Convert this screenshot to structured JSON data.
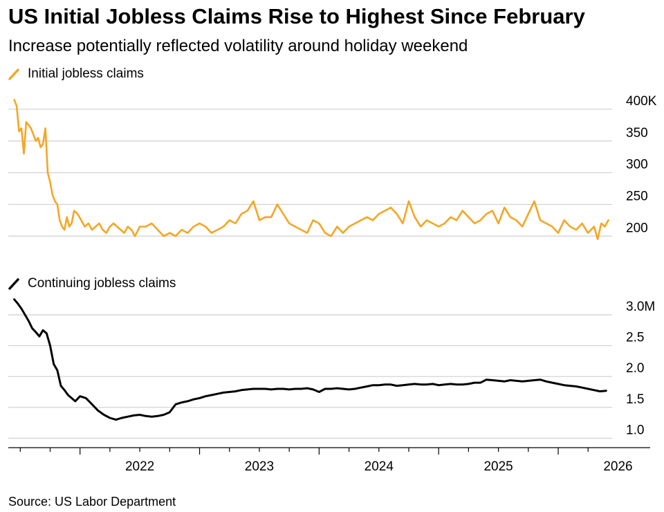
{
  "title": "US Initial Jobless Claims Rise to Highest Since February",
  "subtitle": "Increase potentially reflected volatility around holiday weekend",
  "source": "Source: US Labor Department",
  "colors": {
    "initial": "#f5a623",
    "continuing": "#000000",
    "grid": "#cfcfcf"
  },
  "chart_data": [
    {
      "type": "line",
      "legend": "Initial jobless claims",
      "y_ticks": [
        200,
        250,
        300,
        350,
        400
      ],
      "y_tick_labels": [
        "200",
        "250",
        "300",
        "350",
        "400K"
      ],
      "ylim": [
        185,
        425
      ],
      "x_ticks": [
        2022,
        2023,
        2024,
        2025,
        2026
      ],
      "x_tick_labels": [
        "2022",
        "2023",
        "2024",
        "2025",
        "2026"
      ],
      "xlim": [
        2021.4,
        2026.48
      ],
      "grid": true,
      "series": [
        {
          "name": "Initial jobless claims",
          "x": [
            2021.45,
            2021.47,
            2021.49,
            2021.51,
            2021.53,
            2021.55,
            2021.57,
            2021.59,
            2021.61,
            2021.63,
            2021.65,
            2021.67,
            2021.69,
            2021.71,
            2021.73,
            2021.75,
            2021.77,
            2021.79,
            2021.81,
            2021.83,
            2021.85,
            2021.87,
            2021.89,
            2021.91,
            2021.93,
            2021.95,
            2021.98,
            2022.01,
            2022.04,
            2022.07,
            2022.1,
            2022.13,
            2022.16,
            2022.19,
            2022.22,
            2022.25,
            2022.28,
            2022.31,
            2022.34,
            2022.37,
            2022.4,
            2022.43,
            2022.46,
            2022.5,
            2022.55,
            2022.6,
            2022.65,
            2022.7,
            2022.75,
            2022.8,
            2022.85,
            2022.9,
            2022.95,
            2023.0,
            2023.05,
            2023.1,
            2023.15,
            2023.2,
            2023.25,
            2023.3,
            2023.35,
            2023.4,
            2023.45,
            2023.5,
            2023.55,
            2023.6,
            2023.65,
            2023.7,
            2023.75,
            2023.8,
            2023.85,
            2023.9,
            2023.95,
            2024.0,
            2024.05,
            2024.1,
            2024.15,
            2024.2,
            2024.25,
            2024.3,
            2024.35,
            2024.4,
            2024.45,
            2024.5,
            2024.55,
            2024.6,
            2024.65,
            2024.7,
            2024.75,
            2024.8,
            2024.85,
            2024.9,
            2024.95,
            2025.0,
            2025.05,
            2025.1,
            2025.15,
            2025.2,
            2025.25,
            2025.3,
            2025.35,
            2025.4,
            2025.45,
            2025.5,
            2025.55,
            2025.6,
            2025.65,
            2025.7,
            2025.75,
            2025.8,
            2025.85,
            2025.9,
            2025.95,
            2026.0,
            2026.05,
            2026.1,
            2026.15,
            2026.2,
            2026.25,
            2026.3,
            2026.33,
            2026.36,
            2026.39,
            2026.42
          ],
          "values": [
            415,
            405,
            365,
            370,
            330,
            380,
            375,
            370,
            360,
            350,
            355,
            340,
            345,
            370,
            300,
            285,
            265,
            255,
            250,
            225,
            215,
            210,
            230,
            215,
            220,
            240,
            235,
            225,
            215,
            220,
            210,
            215,
            220,
            210,
            205,
            215,
            220,
            215,
            210,
            205,
            215,
            210,
            200,
            215,
            215,
            220,
            210,
            200,
            205,
            200,
            210,
            205,
            215,
            220,
            215,
            205,
            210,
            215,
            225,
            220,
            235,
            240,
            255,
            225,
            230,
            230,
            250,
            235,
            220,
            215,
            210,
            205,
            225,
            220,
            205,
            200,
            215,
            205,
            215,
            220,
            225,
            230,
            225,
            235,
            240,
            245,
            235,
            220,
            255,
            230,
            215,
            225,
            220,
            215,
            220,
            230,
            225,
            240,
            230,
            220,
            225,
            235,
            240,
            220,
            245,
            230,
            225,
            215,
            235,
            255,
            225,
            220,
            215,
            205,
            225,
            215,
            210,
            220,
            205,
            215,
            195,
            220,
            215,
            225
          ]
        }
      ]
    },
    {
      "type": "line",
      "legend": "Continuing jobless claims",
      "y_ticks": [
        1.0,
        1.5,
        2.0,
        2.5,
        3.0
      ],
      "y_tick_labels": [
        "1.0",
        "1.5",
        "2.0",
        "2.5",
        "3.0M"
      ],
      "ylim": [
        0.87,
        3.28
      ],
      "x_ticks": [
        2022,
        2023,
        2024,
        2025,
        2026
      ],
      "x_tick_labels": [
        "2022",
        "2023",
        "2024",
        "2025",
        "2026"
      ],
      "xlim": [
        2021.4,
        2026.48
      ],
      "grid": true,
      "series": [
        {
          "name": "Continuing jobless claims",
          "x": [
            2021.45,
            2021.48,
            2021.51,
            2021.54,
            2021.57,
            2021.6,
            2021.63,
            2021.66,
            2021.69,
            2021.72,
            2021.75,
            2021.78,
            2021.81,
            2021.84,
            2021.87,
            2021.9,
            2021.93,
            2021.96,
            2022.0,
            2022.05,
            2022.1,
            2022.15,
            2022.2,
            2022.25,
            2022.3,
            2022.35,
            2022.4,
            2022.45,
            2022.5,
            2022.55,
            2022.6,
            2022.65,
            2022.7,
            2022.75,
            2022.8,
            2022.85,
            2022.9,
            2022.95,
            2023.0,
            2023.05,
            2023.1,
            2023.15,
            2023.2,
            2023.25,
            2023.3,
            2023.35,
            2023.4,
            2023.45,
            2023.5,
            2023.55,
            2023.6,
            2023.65,
            2023.7,
            2023.75,
            2023.8,
            2023.85,
            2023.9,
            2023.95,
            2024.0,
            2024.05,
            2024.1,
            2024.15,
            2024.2,
            2024.25,
            2024.3,
            2024.35,
            2024.4,
            2024.45,
            2024.5,
            2024.55,
            2024.6,
            2024.65,
            2024.7,
            2024.75,
            2024.8,
            2024.85,
            2024.9,
            2024.95,
            2025.0,
            2025.05,
            2025.1,
            2025.15,
            2025.2,
            2025.25,
            2025.3,
            2025.35,
            2025.4,
            2025.45,
            2025.5,
            2025.55,
            2025.6,
            2025.65,
            2025.7,
            2025.75,
            2025.8,
            2025.85,
            2025.9,
            2025.95,
            2026.0,
            2026.05,
            2026.1,
            2026.15,
            2026.2,
            2026.25,
            2026.3,
            2026.35,
            2026.4
          ],
          "values": [
            3.25,
            3.18,
            3.1,
            3.0,
            2.9,
            2.78,
            2.72,
            2.65,
            2.75,
            2.7,
            2.5,
            2.2,
            2.1,
            1.85,
            1.78,
            1.7,
            1.65,
            1.6,
            1.68,
            1.65,
            1.55,
            1.45,
            1.38,
            1.33,
            1.3,
            1.33,
            1.35,
            1.37,
            1.38,
            1.36,
            1.35,
            1.36,
            1.38,
            1.42,
            1.55,
            1.58,
            1.6,
            1.63,
            1.65,
            1.68,
            1.7,
            1.72,
            1.74,
            1.75,
            1.76,
            1.78,
            1.79,
            1.8,
            1.8,
            1.8,
            1.79,
            1.8,
            1.8,
            1.79,
            1.8,
            1.8,
            1.81,
            1.79,
            1.75,
            1.8,
            1.8,
            1.81,
            1.8,
            1.79,
            1.8,
            1.82,
            1.84,
            1.86,
            1.86,
            1.87,
            1.87,
            1.85,
            1.86,
            1.87,
            1.88,
            1.87,
            1.87,
            1.88,
            1.86,
            1.87,
            1.88,
            1.87,
            1.87,
            1.88,
            1.9,
            1.9,
            1.95,
            1.94,
            1.93,
            1.92,
            1.94,
            1.93,
            1.92,
            1.93,
            1.94,
            1.95,
            1.92,
            1.9,
            1.88,
            1.86,
            1.85,
            1.84,
            1.82,
            1.8,
            1.78,
            1.76,
            1.77
          ]
        }
      ]
    }
  ]
}
